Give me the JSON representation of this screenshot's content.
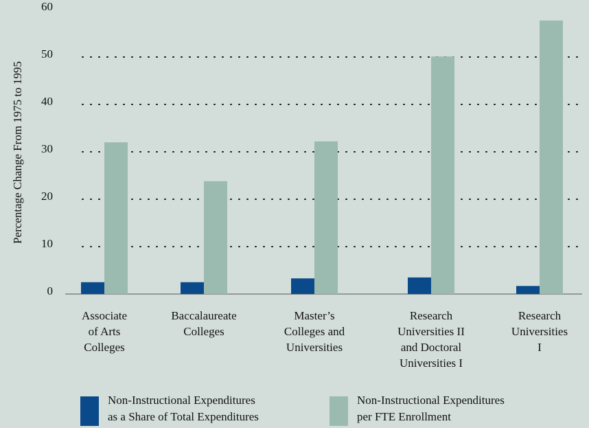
{
  "chart_data": {
    "type": "bar",
    "y_label": "Percentage Change From 1975 to 1995",
    "categories": [
      "Associate\nof Arts\nColleges",
      "Baccalaureate\nColleges",
      "Master’s\nColleges and\nUniversities",
      "Research\nUniversities II\nand Doctoral\nUniversities I",
      "Research\nUniversities I"
    ],
    "series": [
      {
        "name": "Non-Instructional Expenditures\nas a Share of Total Expenditures",
        "color": "#0b4a8a",
        "values": [
          2.5,
          2.5,
          3.3,
          3.5,
          1.7
        ]
      },
      {
        "name": "Non-Instructional Expenditures\nper FTE Enrollment",
        "color": "#9bbab0",
        "values": [
          32.0,
          23.8,
          32.2,
          50.1,
          57.7
        ]
      }
    ],
    "ylim": [
      0,
      60
    ],
    "yticks": [
      0,
      10,
      20,
      30,
      40,
      50,
      60
    ],
    "grid": true
  }
}
